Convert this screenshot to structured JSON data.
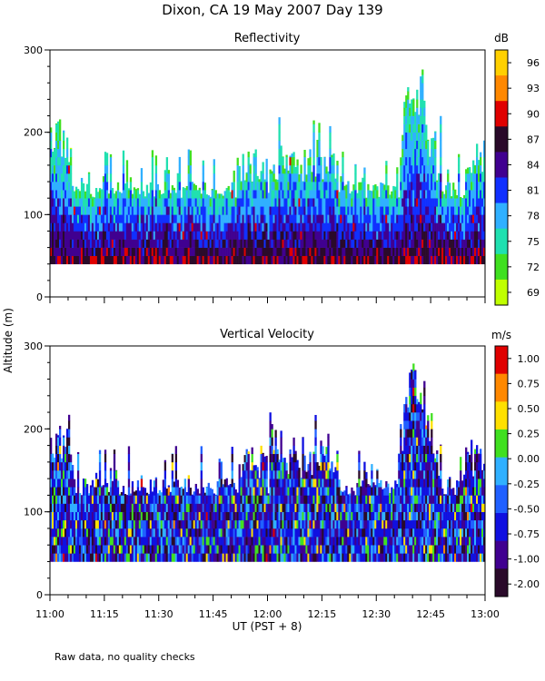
{
  "figure": {
    "title": "Dixon, CA 19 May 2007  Day 139",
    "ylabel": "Altitude (m)",
    "xlabel": "UT  (PST + 8)",
    "footnote": "Raw data, no quality checks"
  },
  "chart_data": [
    {
      "type": "heatmap",
      "title": "Reflectivity",
      "colorbar_unit": "dB",
      "colorbar_ticks": [
        "96",
        "93",
        "90",
        "87",
        "84",
        "81",
        "78",
        "75",
        "72",
        "69"
      ],
      "colorbar_colors": [
        "#ffd000",
        "#ff8800",
        "#e00000",
        "#2a0a2a",
        "#400090",
        "#1030ff",
        "#30b0ff",
        "#20e0b0",
        "#40e020",
        "#c0ff00"
      ],
      "ylim": [
        0,
        300
      ],
      "yticks": [
        "300",
        "200",
        "100",
        "0"
      ],
      "xlim": [
        "11:00",
        "13:00"
      ],
      "xticks": [
        "11:00",
        "11:15",
        "11:30",
        "11:45",
        "12:00",
        "12:15",
        "12:30",
        "12:45",
        "13:00"
      ],
      "data_floor_m": 40,
      "typical_top_m": 120,
      "max_echo_top_m": 280
    },
    {
      "type": "heatmap",
      "title": "Vertical Velocity",
      "colorbar_unit": "m/s",
      "colorbar_ticks": [
        "1.00",
        "0.75",
        "0.50",
        "0.25",
        "0.00",
        "-0.25",
        "-0.50",
        "-0.75",
        "-1.00",
        "-2.00"
      ],
      "colorbar_colors": [
        "#e00000",
        "#ff8800",
        "#ffe000",
        "#40e020",
        "#30b0ff",
        "#2060ff",
        "#1010e0",
        "#400090",
        "#2a0a2a"
      ],
      "ylim": [
        0,
        300
      ],
      "yticks": [
        "300",
        "200",
        "100",
        "0"
      ],
      "xlim": [
        "11:00",
        "13:00"
      ],
      "xticks": [
        "11:00",
        "11:15",
        "11:30",
        "11:45",
        "12:00",
        "12:15",
        "12:30",
        "12:45",
        "13:00"
      ],
      "data_floor_m": 40,
      "typical_top_m": 120,
      "max_echo_top_m": 280
    }
  ]
}
